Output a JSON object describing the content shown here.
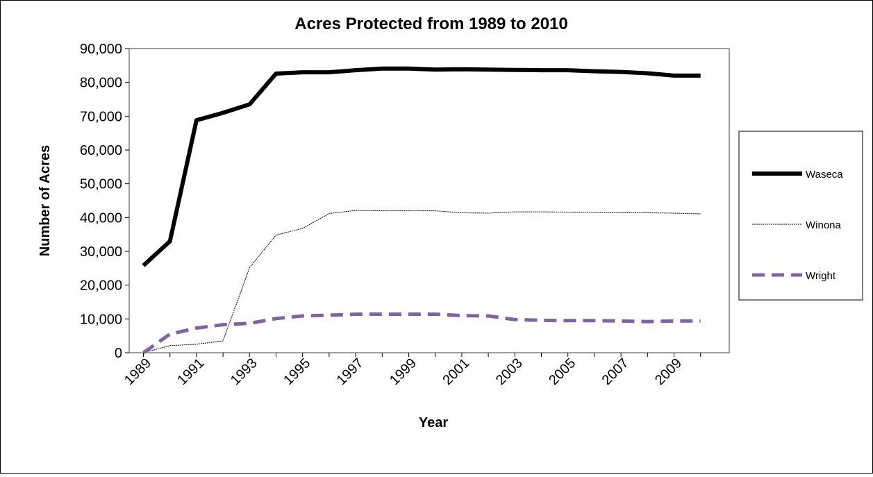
{
  "chart_data": {
    "type": "line",
    "title": "Acres Protected from 1989 to 2010",
    "xlabel": "Year",
    "ylabel": "Number of Acres",
    "x": [
      1989,
      1990,
      1991,
      1992,
      1993,
      1994,
      1995,
      1996,
      1997,
      1998,
      1999,
      2000,
      2001,
      2002,
      2003,
      2004,
      2005,
      2006,
      2007,
      2008,
      2009,
      2010
    ],
    "x_tick_labels": [
      "1989",
      "1991",
      "1993",
      "1995",
      "1997",
      "1999",
      "2001",
      "2003",
      "2005",
      "2007",
      "2009"
    ],
    "ylim": [
      0,
      90000
    ],
    "y_ticks": [
      0,
      10000,
      20000,
      30000,
      40000,
      50000,
      60000,
      70000,
      80000,
      90000
    ],
    "y_tick_labels": [
      "0",
      "10,000",
      "20,000",
      "30,000",
      "40,000",
      "50,000",
      "60,000",
      "70,000",
      "80,000",
      "90,000"
    ],
    "grid": false,
    "legend_position": "right",
    "series": [
      {
        "name": "Waseca",
        "color": "#000000",
        "style": "solid-thick",
        "values": [
          25800,
          33000,
          68800,
          71000,
          73500,
          82600,
          83000,
          83000,
          83600,
          84100,
          84100,
          83800,
          83900,
          83800,
          83700,
          83600,
          83600,
          83300,
          83100,
          82700,
          82000,
          82000
        ]
      },
      {
        "name": "Winona",
        "color": "#000000",
        "style": "dotted-thin",
        "values": [
          0,
          2100,
          2500,
          3500,
          25200,
          34800,
          36800,
          41200,
          42100,
          42000,
          42000,
          42000,
          41400,
          41300,
          41700,
          41700,
          41600,
          41500,
          41400,
          41400,
          41300,
          41100
        ]
      },
      {
        "name": "Wright",
        "color": "#8064a2",
        "style": "dashed",
        "values": [
          0,
          5500,
          7300,
          8300,
          8700,
          10100,
          10900,
          11100,
          11400,
          11400,
          11400,
          11400,
          11000,
          10900,
          9800,
          9600,
          9500,
          9500,
          9400,
          9200,
          9400,
          9400
        ]
      }
    ]
  }
}
